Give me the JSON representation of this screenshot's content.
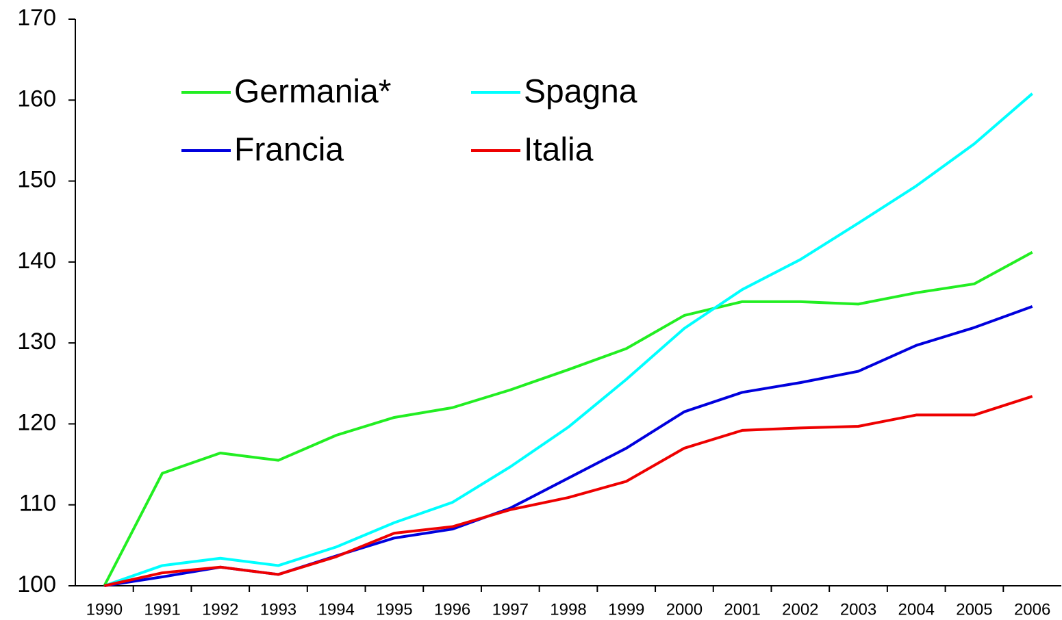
{
  "chart_data": {
    "type": "line",
    "categories": [
      "1990",
      "1991",
      "1992",
      "1993",
      "1994",
      "1995",
      "1996",
      "1997",
      "1998",
      "1999",
      "2000",
      "2001",
      "2002",
      "2003",
      "2004",
      "2005",
      "2006"
    ],
    "series": [
      {
        "name": "Germania*",
        "color": "#22ee22",
        "values": [
          100,
          113.9,
          116.4,
          115.5,
          118.6,
          120.8,
          122.0,
          124.2,
          126.7,
          129.3,
          133.4,
          135.1,
          135.1,
          134.8,
          136.2,
          137.3,
          141.2
        ]
      },
      {
        "name": "Spagna",
        "color": "#00ffff",
        "values": [
          100,
          102.5,
          103.4,
          102.5,
          104.8,
          107.8,
          110.3,
          114.7,
          119.6,
          125.5,
          131.8,
          136.6,
          140.3,
          144.8,
          149.4,
          154.6,
          160.8
        ]
      },
      {
        "name": "Francia",
        "color": "#0000dd",
        "values": [
          100,
          101.1,
          102.3,
          101.4,
          103.7,
          105.9,
          107.0,
          109.6,
          113.3,
          117.0,
          121.5,
          123.9,
          125.1,
          126.5,
          129.7,
          131.9,
          134.5
        ]
      },
      {
        "name": "Italia",
        "color": "#ee0000",
        "values": [
          100,
          101.6,
          102.3,
          101.4,
          103.6,
          106.5,
          107.3,
          109.4,
          110.9,
          112.9,
          117.0,
          119.2,
          119.5,
          119.7,
          121.1,
          121.1,
          123.4
        ]
      }
    ],
    "ylim": [
      100,
      170
    ],
    "yticks": [
      100,
      110,
      120,
      130,
      140,
      150,
      160,
      170
    ],
    "grid": false,
    "legend": "upper left"
  }
}
